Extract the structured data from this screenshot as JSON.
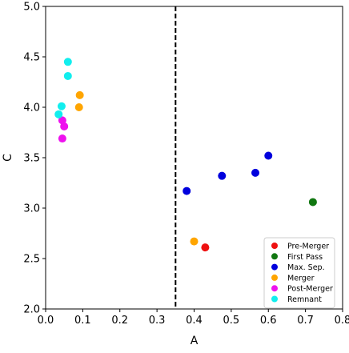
{
  "chart_data": {
    "type": "scatter",
    "xlabel": "A",
    "ylabel": "C",
    "xlim": [
      0.0,
      0.8
    ],
    "ylim": [
      2.0,
      5.0
    ],
    "xticks": [
      "0.0",
      "0.1",
      "0.2",
      "0.3",
      "0.4",
      "0.5",
      "0.6",
      "0.7",
      "0.8"
    ],
    "yticks": [
      "2.0",
      "2.5",
      "3.0",
      "3.5",
      "4.0",
      "4.5",
      "5.0"
    ],
    "grid": false,
    "legend_position": "lower-right",
    "reference_line": {
      "orientation": "vertical",
      "x": 0.35,
      "style": "dashed",
      "color": "#000000"
    },
    "series": [
      {
        "name": "Pre-Merger",
        "color": "#ee1111",
        "points": [
          [
            0.43,
            2.61
          ]
        ]
      },
      {
        "name": "First Pass",
        "color": "#117711",
        "points": [
          [
            0.72,
            3.06
          ]
        ]
      },
      {
        "name": "Max. Sep.",
        "color": "#0000dd",
        "points": [
          [
            0.38,
            3.17
          ],
          [
            0.475,
            3.32
          ],
          [
            0.565,
            3.35
          ],
          [
            0.6,
            3.52
          ]
        ]
      },
      {
        "name": "Merger",
        "color": "#ffa500",
        "points": [
          [
            0.4,
            2.67
          ],
          [
            0.09,
            4.0
          ],
          [
            0.092,
            4.12
          ]
        ]
      },
      {
        "name": "Post-Merger",
        "color": "#ee11ee",
        "points": [
          [
            0.045,
            3.69
          ],
          [
            0.05,
            3.81
          ],
          [
            0.045,
            3.87
          ]
        ]
      },
      {
        "name": "Remnant",
        "color": "#11eeee",
        "points": [
          [
            0.035,
            3.93
          ],
          [
            0.043,
            4.01
          ],
          [
            0.06,
            4.31
          ],
          [
            0.06,
            4.45
          ]
        ]
      }
    ]
  }
}
